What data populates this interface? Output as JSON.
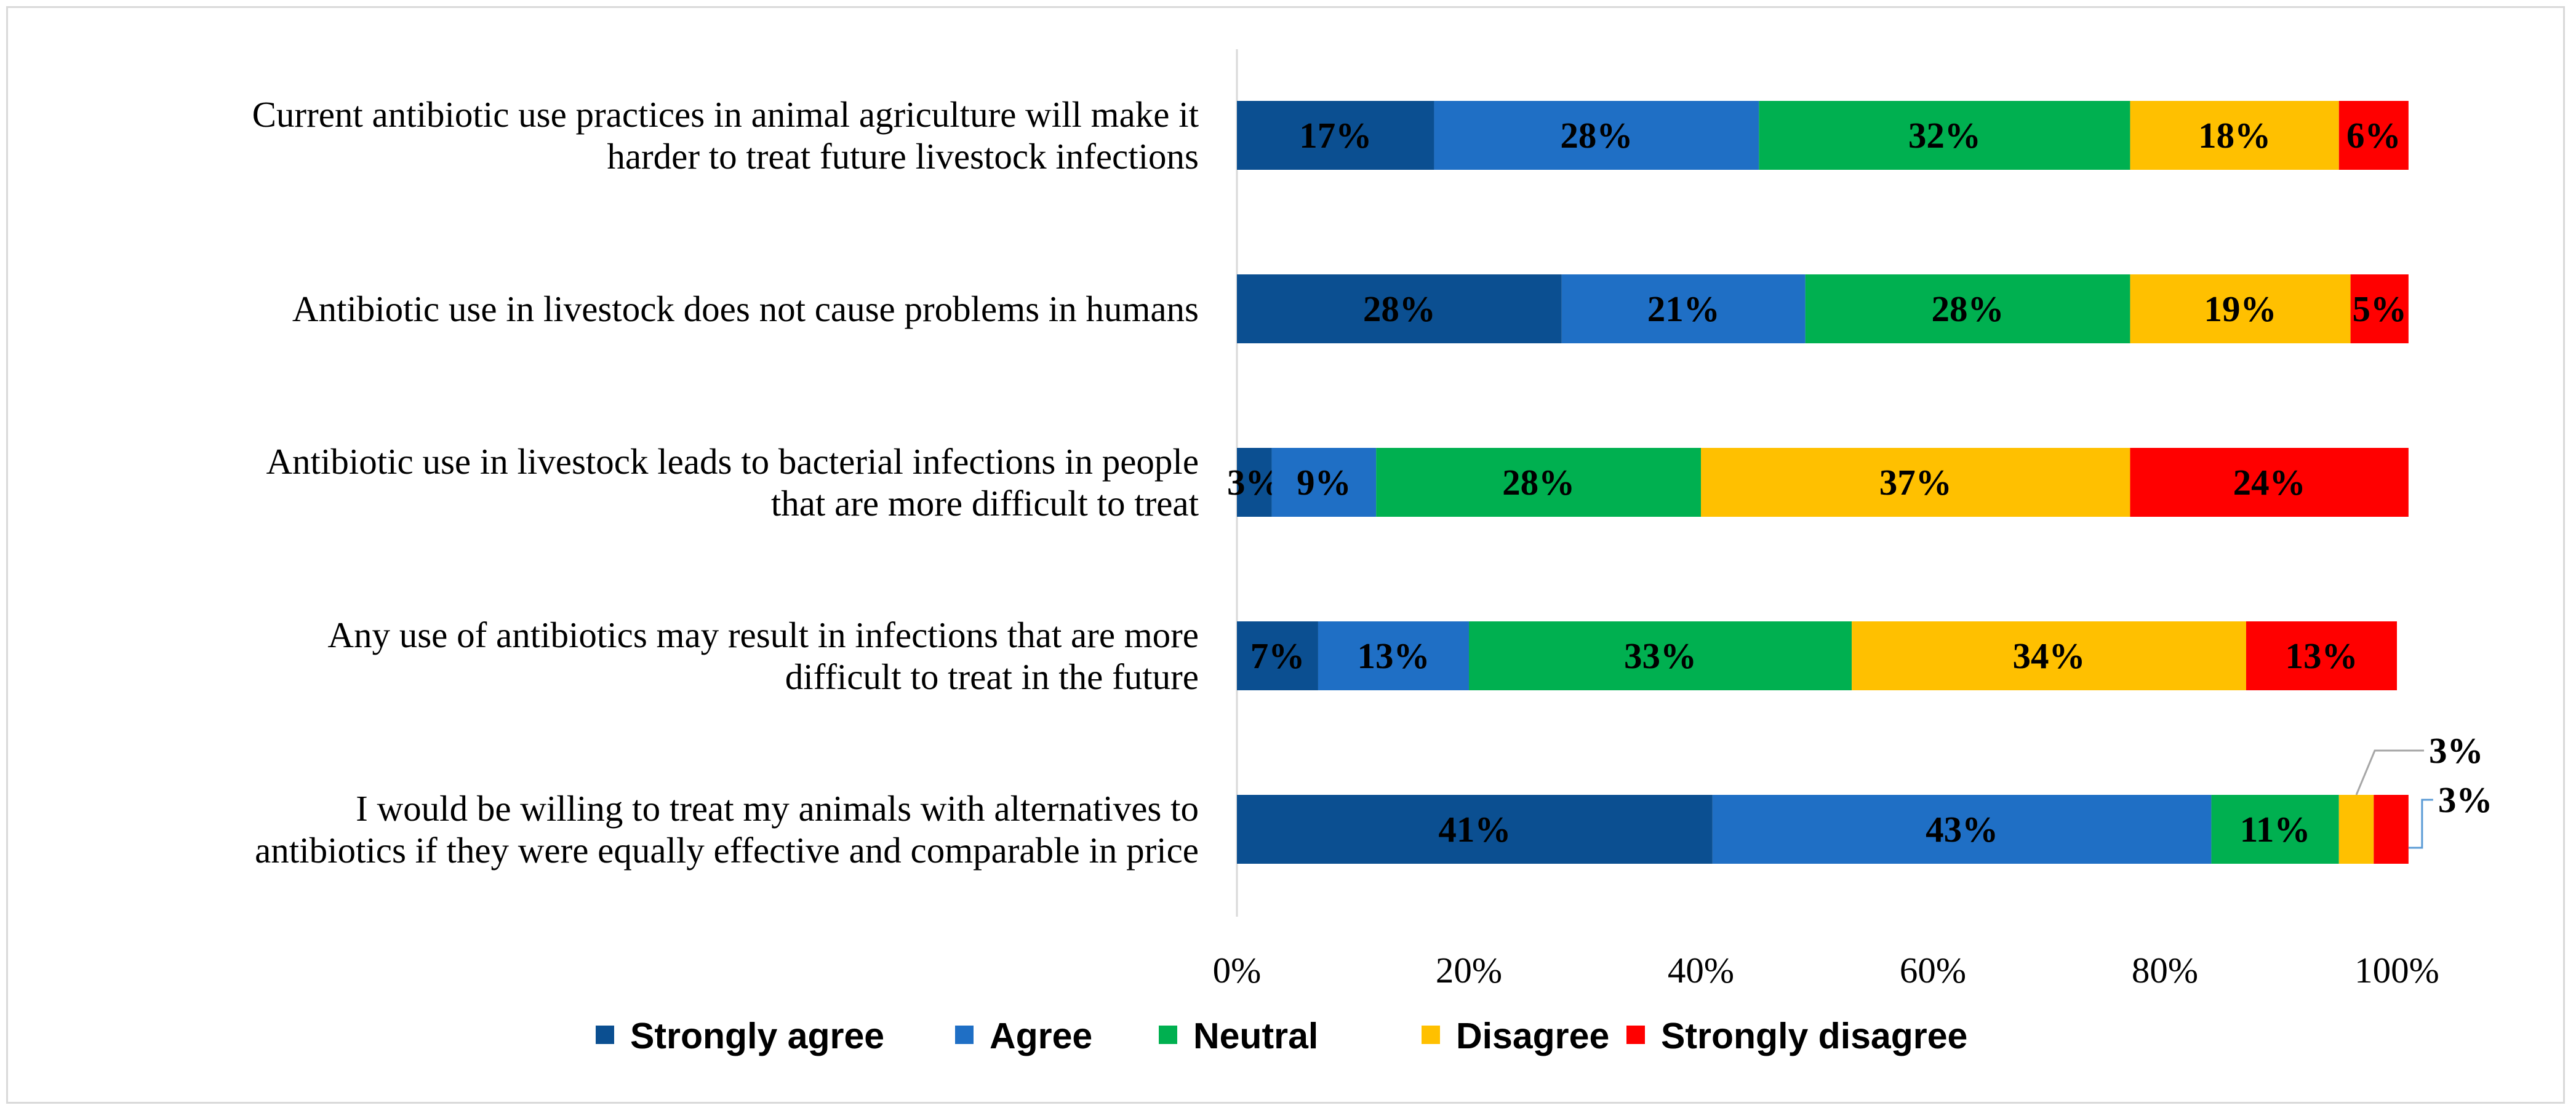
{
  "chart_data": {
    "type": "bar",
    "orientation": "horizontal",
    "stacked": true,
    "title": "",
    "xlabel": "",
    "ylabel": "",
    "xlim": [
      0,
      100
    ],
    "x_ticks": [
      "0%",
      "20%",
      "40%",
      "60%",
      "80%",
      "100%"
    ],
    "categories": [
      [
        "Current antibiotic use practices in animal agriculture will make it",
        "harder to treat future livestock infections"
      ],
      [
        "Antibiotic use in livestock does not cause problems in humans"
      ],
      [
        "Antibiotic use in livestock leads to bacterial infections in people",
        "that are more difficult to treat"
      ],
      [
        "Any use of antibiotics may result in infections that are more",
        "difficult to treat in the future"
      ],
      [
        "I would be willing to treat my animals with alternatives to",
        "antibiotics if they were equally effective and comparable in price"
      ]
    ],
    "series": [
      {
        "name": "Strongly agree",
        "color": "#0b4f91",
        "values": [
          17,
          28,
          3,
          7,
          41
        ],
        "labels": [
          "17%",
          "28%",
          "3%",
          "7%",
          "41%"
        ]
      },
      {
        "name": "Agree",
        "color": "#1f6fc5",
        "values": [
          28,
          21,
          9,
          13,
          43
        ],
        "labels": [
          "28%",
          "21%",
          "9%",
          "13%",
          "43%"
        ]
      },
      {
        "name": "Neutral",
        "color": "#00b050",
        "values": [
          32,
          28,
          28,
          33,
          11
        ],
        "labels": [
          "32%",
          "28%",
          "28%",
          "33%",
          "11%"
        ]
      },
      {
        "name": "Disagree",
        "color": "#ffc000",
        "values": [
          18,
          19,
          37,
          34,
          3
        ],
        "labels": [
          "18%",
          "19%",
          "37%",
          "34%",
          "3%"
        ]
      },
      {
        "name": "Strongly disagree",
        "color": "#ff0000",
        "values": [
          6,
          5,
          24,
          13,
          3
        ],
        "labels": [
          "6%",
          "5%",
          "24%",
          "13%",
          "3%"
        ]
      }
    ],
    "legend": {
      "position": "bottom"
    },
    "gridlines": false
  }
}
